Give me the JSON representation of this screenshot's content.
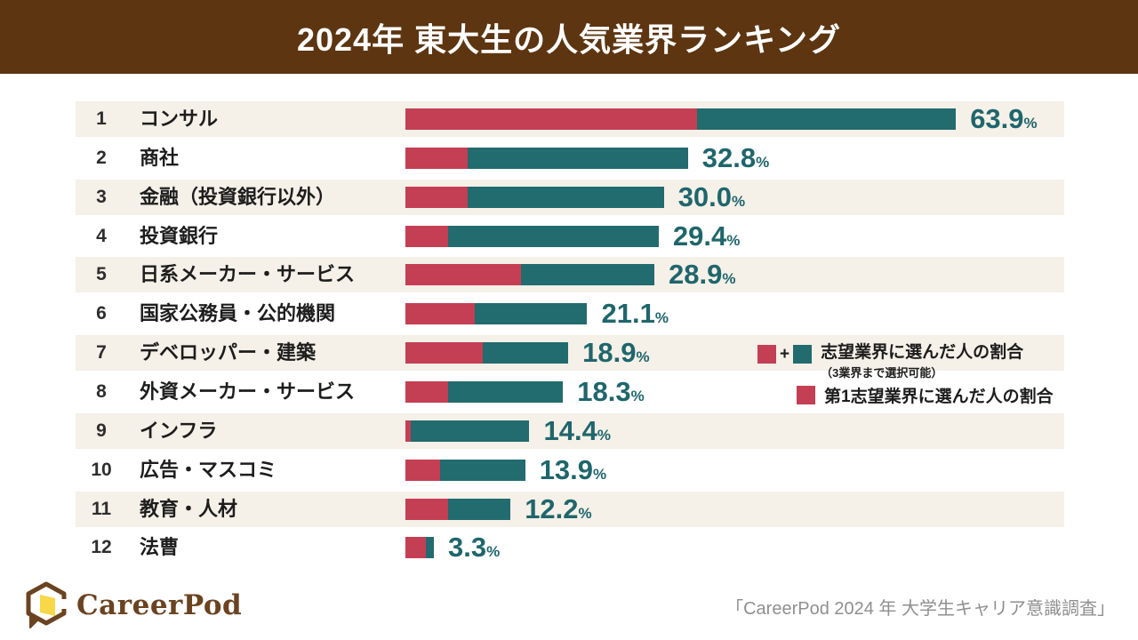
{
  "header": {
    "title": "2024年 東大生の人気業界ランキング"
  },
  "chart_data": {
    "type": "bar",
    "orientation": "horizontal",
    "stacked": true,
    "title": "2024年 東大生の人気業界ランキング",
    "unit": "%",
    "percent_suffix": "%",
    "xlim": [
      0,
      70
    ],
    "grid": false,
    "ranks": [
      "1",
      "2",
      "3",
      "4",
      "5",
      "6",
      "7",
      "8",
      "9",
      "10",
      "11",
      "12"
    ],
    "categories": [
      "コンサル",
      "商社",
      "金融（投資銀行以外）",
      "投資銀行",
      "日系メーカー・サービス",
      "国家公務員・公的機関",
      "デベロッパー・建築",
      "外資メーカー・サービス",
      "インフラ",
      "広告・マスコミ",
      "教育・人材",
      "法曹"
    ],
    "series": [
      {
        "name": "第1志望業界に選んだ人の割合",
        "color": "#c43f54",
        "estimated_from_pixels": true,
        "values": [
          33.8,
          7.2,
          7.2,
          4.9,
          13.4,
          8.0,
          9.0,
          4.9,
          0.6,
          4.0,
          4.9,
          2.4
        ]
      },
      {
        "name": "志望業界に選んだ人の割合（3業界まで選択可能）",
        "color": "#226b6e",
        "values_are_totals": true,
        "values": [
          63.9,
          32.8,
          30.0,
          29.4,
          28.9,
          21.1,
          18.9,
          18.3,
          14.4,
          13.9,
          12.2,
          3.3
        ]
      }
    ],
    "value_labels": [
      "63.9",
      "32.8",
      "30.0",
      "29.4",
      "28.9",
      "21.1",
      "18.9",
      "18.3",
      "14.4",
      "13.9",
      "12.2",
      "3.3"
    ],
    "legend_position": "middle-right"
  },
  "legend": {
    "plus": "+",
    "combined_label": "志望業界に選んだ人の割合",
    "combined_sublabel": "（3業界まで選択可能）",
    "first_choice_label": "第1志望業界に選んだ人の割合"
  },
  "footer": {
    "brand": "CareerPod",
    "source": "「CareerPod 2024 年 大学生キャリア意識調査」"
  },
  "colors": {
    "header_brown": "#5d3511",
    "band_cream": "#f5f0e8",
    "bar_red": "#c43f54",
    "bar_teal": "#226b6e",
    "value_teal": "#1f666c",
    "logo_brown": "#6b4320",
    "logo_yellow": "#f8d748",
    "source_gray": "#8f8f8f"
  }
}
